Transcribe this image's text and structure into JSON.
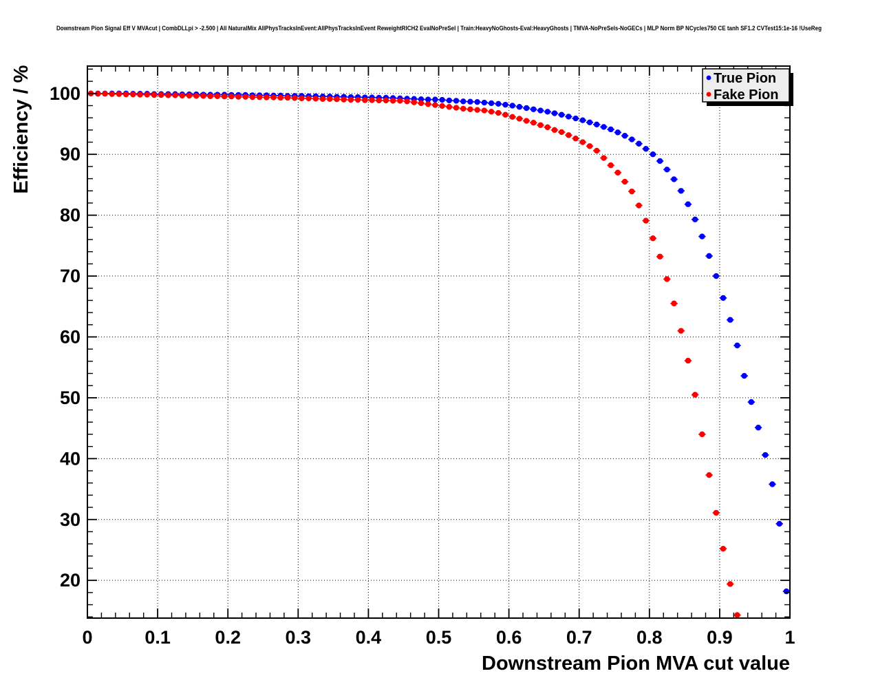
{
  "chart_data": {
    "type": "scatter",
    "title": "Downstream Pion Signal Eff V MVAcut | CombDLLpi > -2.500 | All NaturalMix AllPhysTracksInEvent:AllPhysTracksInEvent ReweightRICH2 EvalNoPreSel | Train:HeavyNoGhosts-Eval:HeavyGhosts | TMVA-NoPreSels-NoGECs | MLP Norm BP NCycles750 CE tanh SF1.2 CVTest15:1e-16 !UseReg",
    "xlabel": "Downstream Pion MVA cut value",
    "ylabel": "Efficiency / %",
    "xlim": [
      0,
      1.0
    ],
    "ylim": [
      13.8,
      104.5
    ],
    "grid": true,
    "grid_style": "dotted",
    "legend_position": "top-right",
    "x_tick_values": [
      0,
      0.1,
      0.2,
      0.3,
      0.4,
      0.5,
      0.6,
      0.7,
      0.8,
      0.9,
      1
    ],
    "x_tick_labels": [
      "0",
      "0.1",
      "0.2",
      "0.3",
      "0.4",
      "0.5",
      "0.6",
      "0.7",
      "0.8",
      "0.9",
      "1"
    ],
    "y_tick_values": [
      20,
      30,
      40,
      50,
      60,
      70,
      80,
      90,
      100
    ],
    "y_tick_labels": [
      "20",
      "30",
      "40",
      "50",
      "60",
      "70",
      "80",
      "90",
      "100"
    ],
    "x_minor_step": 0.02,
    "y_minor_step": 2,
    "axis_color": "#000000",
    "x": [
      0.005,
      0.015,
      0.025,
      0.035,
      0.045,
      0.055,
      0.065,
      0.075,
      0.085,
      0.095,
      0.105,
      0.115,
      0.125,
      0.135,
      0.145,
      0.155,
      0.165,
      0.175,
      0.185,
      0.195,
      0.205,
      0.215,
      0.225,
      0.235,
      0.245,
      0.255,
      0.265,
      0.275,
      0.285,
      0.295,
      0.305,
      0.315,
      0.325,
      0.335,
      0.345,
      0.355,
      0.365,
      0.375,
      0.385,
      0.395,
      0.405,
      0.415,
      0.425,
      0.435,
      0.445,
      0.455,
      0.465,
      0.475,
      0.485,
      0.495,
      0.505,
      0.515,
      0.525,
      0.535,
      0.545,
      0.555,
      0.565,
      0.575,
      0.585,
      0.595,
      0.605,
      0.615,
      0.625,
      0.635,
      0.645,
      0.655,
      0.665,
      0.675,
      0.685,
      0.695,
      0.705,
      0.715,
      0.725,
      0.735,
      0.745,
      0.755,
      0.765,
      0.775,
      0.785,
      0.795,
      0.805,
      0.815,
      0.825,
      0.835,
      0.845,
      0.855,
      0.865,
      0.875,
      0.885,
      0.895,
      0.905,
      0.915,
      0.925,
      0.935,
      0.945,
      0.955,
      0.965,
      0.975,
      0.985,
      0.995
    ],
    "series": [
      {
        "name": "True Pion",
        "color": "#0000ff",
        "marker": "filled-circle",
        "values": [
          100,
          100,
          100,
          100,
          100,
          100,
          99.95,
          99.95,
          99.95,
          99.9,
          99.9,
          99.9,
          99.9,
          99.85,
          99.85,
          99.85,
          99.8,
          99.8,
          99.8,
          99.8,
          99.75,
          99.75,
          99.75,
          99.7,
          99.7,
          99.7,
          99.65,
          99.65,
          99.6,
          99.6,
          99.6,
          99.55,
          99.55,
          99.5,
          99.5,
          99.45,
          99.45,
          99.4,
          99.4,
          99.35,
          99.35,
          99.3,
          99.3,
          99.25,
          99.2,
          99.15,
          99.1,
          99.05,
          99,
          99,
          98.95,
          98.85,
          98.8,
          98.7,
          98.65,
          98.6,
          98.5,
          98.4,
          98.3,
          98.15,
          98,
          97.8,
          97.6,
          97.4,
          97.2,
          97,
          96.75,
          96.5,
          96.2,
          95.9,
          95.6,
          95.25,
          94.9,
          94.5,
          94.1,
          93.6,
          93.05,
          92.45,
          91.75,
          90.9,
          90,
          88.9,
          87.5,
          85.9,
          84,
          81.8,
          79.3,
          76.5,
          73.3,
          70,
          66.4,
          62.8,
          58.6,
          53.6,
          49.3,
          45.1,
          40.6,
          35.8,
          29.3,
          18.2
        ]
      },
      {
        "name": "Fake Pion",
        "color": "#ff0000",
        "marker": "filled-circle",
        "values": [
          100,
          99.95,
          99.95,
          99.9,
          99.9,
          99.85,
          99.85,
          99.8,
          99.8,
          99.75,
          99.75,
          99.7,
          99.7,
          99.65,
          99.65,
          99.6,
          99.6,
          99.55,
          99.55,
          99.5,
          99.5,
          99.45,
          99.45,
          99.4,
          99.4,
          99.35,
          99.35,
          99.3,
          99.3,
          99.25,
          99.2,
          99.2,
          99.15,
          99.1,
          99.1,
          99.05,
          99,
          98.95,
          98.95,
          98.9,
          98.9,
          98.85,
          98.85,
          98.8,
          98.8,
          98.7,
          98.55,
          98.4,
          98.25,
          98.1,
          97.95,
          97.8,
          97.65,
          97.5,
          97.4,
          97.3,
          97.2,
          97,
          96.8,
          96.5,
          96.15,
          95.85,
          95.5,
          95.2,
          94.8,
          94.45,
          94,
          93.65,
          93.15,
          92.6,
          92,
          91.35,
          90.6,
          89.4,
          88.2,
          87,
          85.5,
          83.9,
          81.6,
          79.1,
          76.2,
          73.2,
          69.5,
          65.5,
          61,
          56.1,
          50.5,
          44,
          37.3,
          31.1,
          25.2,
          19.4,
          14.3,
          null,
          null,
          null,
          null,
          null,
          null,
          null
        ]
      }
    ]
  },
  "legend": {
    "items": [
      {
        "label": "True Pion",
        "color": "#0000ff"
      },
      {
        "label": "Fake Pion",
        "color": "#ff0000"
      }
    ],
    "background": "#ededed",
    "border_color": "#000000",
    "shadow_color": "#000000"
  }
}
